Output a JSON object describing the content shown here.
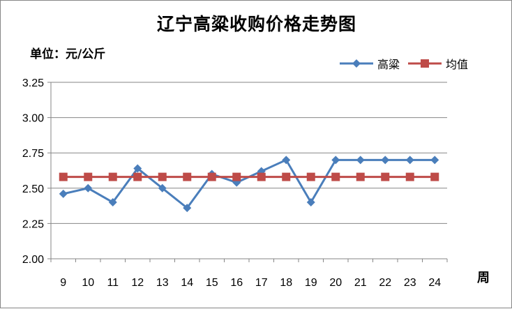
{
  "chart_data": {
    "type": "line",
    "title": "辽宁高粱收购价格走势图",
    "unit_label": "单位：元/公斤",
    "xlabel": "周",
    "categories": [
      "9",
      "10",
      "11",
      "12",
      "13",
      "14",
      "15",
      "16",
      "17",
      "18",
      "19",
      "20",
      "21",
      "22",
      "23",
      "24"
    ],
    "series": [
      {
        "name": "高粱",
        "color": "#4A7EBB",
        "marker": "diamond",
        "values": [
          2.46,
          2.5,
          2.4,
          2.64,
          2.5,
          2.36,
          2.6,
          2.54,
          2.62,
          2.7,
          2.4,
          2.7,
          2.7,
          2.7,
          2.7,
          2.7
        ]
      },
      {
        "name": "均值",
        "color": "#BE4B48",
        "marker": "square",
        "values": [
          2.58,
          2.58,
          2.58,
          2.58,
          2.58,
          2.58,
          2.58,
          2.58,
          2.58,
          2.58,
          2.58,
          2.58,
          2.58,
          2.58,
          2.58,
          2.58
        ]
      }
    ],
    "ylim": [
      2.0,
      3.25
    ],
    "yticks": [
      "2.00",
      "2.25",
      "2.50",
      "2.75",
      "3.00",
      "3.25"
    ],
    "grid": true,
    "legend_position": "top-right"
  }
}
